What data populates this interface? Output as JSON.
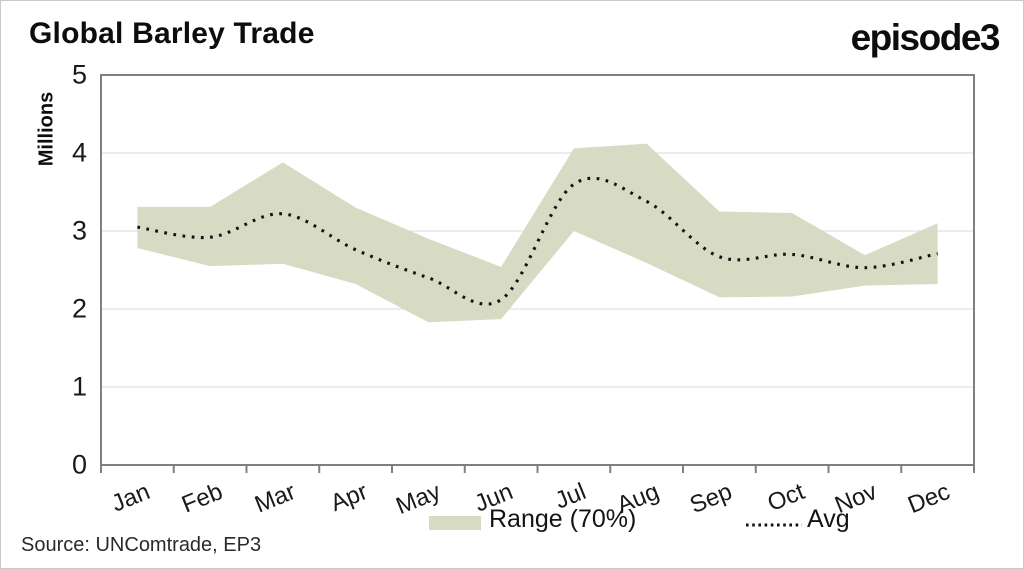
{
  "header": {
    "title": "Global Barley Trade",
    "logo": "episode3"
  },
  "source_note": "Source: UNComtrade, EP3",
  "legend": {
    "range_label": "Range (70%)",
    "avg_label": "Avg"
  },
  "colors": {
    "band": "#d8dbc3",
    "avg_line": "#111111",
    "gridline": "#d9d9d9",
    "axis": "#7f7f7f",
    "background": "#ffffff"
  },
  "chart_data": {
    "type": "area",
    "title": "Global Barley Trade",
    "xlabel": "",
    "ylabel": "Millions",
    "ylim": [
      0,
      5
    ],
    "yticks": [
      0,
      1,
      2,
      3,
      4,
      5
    ],
    "grid": "horizontal",
    "legend_position": "bottom",
    "categories": [
      "Jan",
      "Feb",
      "Mar",
      "Apr",
      "May",
      "Jun",
      "Jul",
      "Aug",
      "Sep",
      "Oct",
      "Nov",
      "Dec"
    ],
    "series": [
      {
        "name": "Range (70%)",
        "type": "band",
        "color": "#d8dbc3",
        "lower": [
          2.78,
          2.55,
          2.58,
          2.32,
          1.83,
          1.87,
          3.0,
          2.59,
          2.15,
          2.16,
          2.3,
          2.32
        ],
        "upper": [
          3.31,
          3.31,
          3.88,
          3.3,
          2.9,
          2.54,
          4.06,
          4.12,
          3.25,
          3.23,
          2.69,
          3.1
        ]
      },
      {
        "name": "Avg",
        "type": "line",
        "line_style": "dotted",
        "color": "#111111",
        "values": [
          3.05,
          2.92,
          3.22,
          2.76,
          2.4,
          2.12,
          3.6,
          3.38,
          2.67,
          2.7,
          2.53,
          2.71
        ]
      }
    ]
  }
}
